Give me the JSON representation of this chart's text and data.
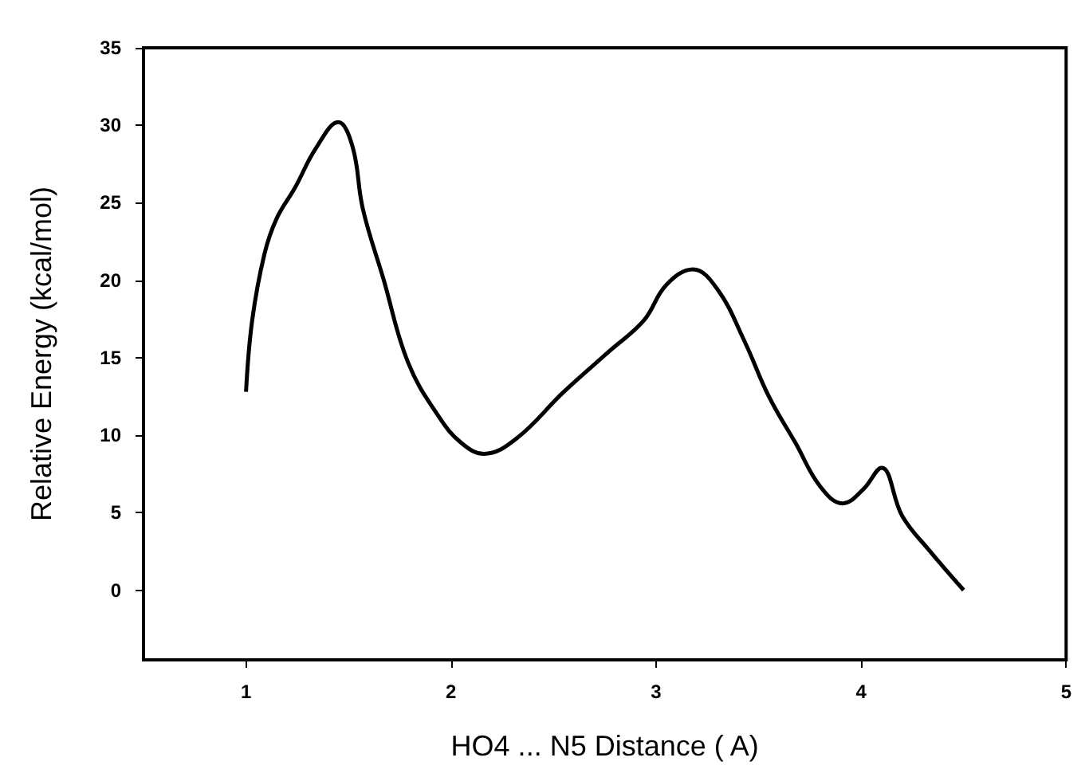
{
  "chart_data": {
    "type": "line",
    "xlabel": "HO4 ... N5 Distance ( A)",
    "ylabel": "Relative Energy (kcal/mol)",
    "xlim": [
      0.5,
      5
    ],
    "xticks": [
      1,
      2,
      3,
      4,
      5
    ],
    "ylim": [
      -4.5,
      35
    ],
    "yticks": [
      0,
      5,
      10,
      15,
      20,
      25,
      30,
      35
    ],
    "grid": false,
    "marker": "none",
    "line_style": "solid",
    "series": [
      {
        "color": "#000000",
        "x": [
          1,
          1.03,
          1.09,
          1.15,
          1.24,
          1.34,
          1.45,
          1.52,
          1.57,
          1.67,
          1.79,
          1.94,
          2.05,
          2.16,
          2.32,
          2.55,
          2.77,
          2.94,
          3.05,
          3.18,
          3.3,
          3.43,
          3.55,
          3.68,
          3.8,
          3.91,
          4.01,
          4.1,
          4.2,
          4.33,
          4.5
        ],
        "values": [
          12.8,
          17.4,
          21.7,
          24,
          26,
          28.5,
          30.2,
          28.6,
          24.6,
          20.1,
          14.7,
          11.2,
          9.5,
          8.8,
          9.8,
          12.8,
          15.4,
          17.4,
          19.7,
          20.7,
          19.4,
          16.1,
          12.5,
          9.5,
          6.7,
          5.6,
          6.5,
          7.9,
          4.8,
          2.6,
          0
        ]
      }
    ]
  }
}
